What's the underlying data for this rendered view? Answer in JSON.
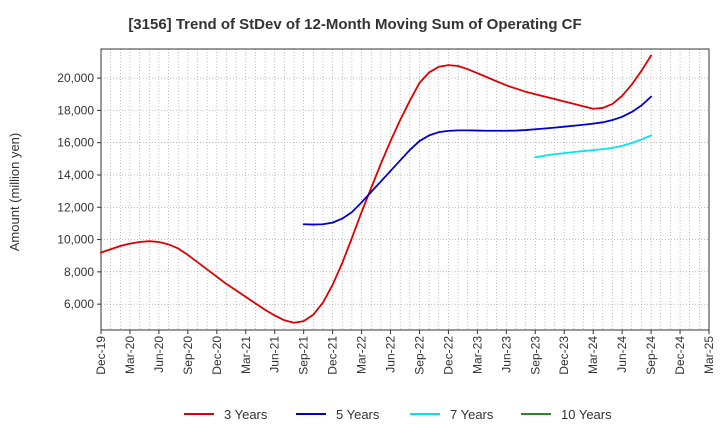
{
  "chart_data": {
    "type": "line",
    "title": "[3156]  Trend of StDev of 12-Month Moving Sum of Operating CF",
    "xlabel": "",
    "ylabel": "Amount (million yen)",
    "ylim": [
      4400,
      21800
    ],
    "yticks": [
      6000,
      8000,
      10000,
      12000,
      14000,
      16000,
      18000,
      20000
    ],
    "ytick_labels": [
      "6,000",
      "8,000",
      "10,000",
      "12,000",
      "14,000",
      "16,000",
      "18,000",
      "20,000"
    ],
    "x_ticks": [
      "Dec-19",
      "Mar-20",
      "Jun-20",
      "Sep-20",
      "Dec-20",
      "Mar-21",
      "Jun-21",
      "Sep-21",
      "Dec-21",
      "Mar-22",
      "Jun-22",
      "Sep-22",
      "Dec-22",
      "Mar-23",
      "Jun-23",
      "Sep-23",
      "Dec-23",
      "Mar-24",
      "Jun-24",
      "Sep-24",
      "Dec-24",
      "Mar-25"
    ],
    "grid": true,
    "legend_position": "bottom",
    "series": [
      {
        "name": "3 Years",
        "color": "#dd0000",
        "points": [
          [
            "Dec-19",
            9200
          ],
          [
            "Jan-20",
            9400
          ],
          [
            "Feb-20",
            9600
          ],
          [
            "Mar-20",
            9750
          ],
          [
            "Apr-20",
            9850
          ],
          [
            "May-20",
            9900
          ],
          [
            "Jun-20",
            9850
          ],
          [
            "Jul-20",
            9700
          ],
          [
            "Aug-20",
            9450
          ],
          [
            "Sep-20",
            9050
          ],
          [
            "Oct-20",
            8600
          ],
          [
            "Nov-20",
            8150
          ],
          [
            "Dec-20",
            7700
          ],
          [
            "Jan-21",
            7250
          ],
          [
            "Feb-21",
            6850
          ],
          [
            "Mar-21",
            6450
          ],
          [
            "Apr-21",
            6050
          ],
          [
            "May-21",
            5650
          ],
          [
            "Jun-21",
            5300
          ],
          [
            "Jul-21",
            5000
          ],
          [
            "Aug-21",
            4850
          ],
          [
            "Sep-21",
            4950
          ],
          [
            "Oct-21",
            5350
          ],
          [
            "Nov-21",
            6100
          ],
          [
            "Dec-21",
            7200
          ],
          [
            "Jan-22",
            8550
          ],
          [
            "Feb-22",
            10100
          ],
          [
            "Mar-22",
            11700
          ],
          [
            "Apr-22",
            13200
          ],
          [
            "May-22",
            14700
          ],
          [
            "Jun-22",
            16100
          ],
          [
            "Jul-22",
            17400
          ],
          [
            "Aug-22",
            18600
          ],
          [
            "Sep-22",
            19700
          ],
          [
            "Oct-22",
            20350
          ],
          [
            "Nov-22",
            20700
          ],
          [
            "Dec-22",
            20800
          ],
          [
            "Jan-23",
            20750
          ],
          [
            "Feb-23",
            20550
          ],
          [
            "Mar-23",
            20300
          ],
          [
            "Apr-23",
            20050
          ],
          [
            "May-23",
            19800
          ],
          [
            "Jun-23",
            19550
          ],
          [
            "Jul-23",
            19350
          ],
          [
            "Aug-23",
            19150
          ],
          [
            "Sep-23",
            19000
          ],
          [
            "Oct-23",
            18850
          ],
          [
            "Nov-23",
            18700
          ],
          [
            "Dec-23",
            18550
          ],
          [
            "Jan-24",
            18400
          ],
          [
            "Feb-24",
            18250
          ],
          [
            "Mar-24",
            18100
          ],
          [
            "Apr-24",
            18150
          ],
          [
            "May-24",
            18400
          ],
          [
            "Jun-24",
            18900
          ],
          [
            "Jul-24",
            19600
          ],
          [
            "Aug-24",
            20450
          ],
          [
            "Sep-24",
            21400
          ]
        ]
      },
      {
        "name": "5 Years",
        "color": "#0000cc",
        "points": [
          [
            "Sep-21",
            10950
          ],
          [
            "Oct-21",
            10930
          ],
          [
            "Nov-21",
            10950
          ],
          [
            "Dec-21",
            11050
          ],
          [
            "Jan-22",
            11300
          ],
          [
            "Feb-22",
            11700
          ],
          [
            "Mar-22",
            12300
          ],
          [
            "Apr-22",
            12950
          ],
          [
            "May-22",
            13600
          ],
          [
            "Jun-22",
            14250
          ],
          [
            "Jul-22",
            14900
          ],
          [
            "Aug-22",
            15550
          ],
          [
            "Sep-22",
            16100
          ],
          [
            "Oct-22",
            16450
          ],
          [
            "Nov-22",
            16650
          ],
          [
            "Dec-22",
            16730
          ],
          [
            "Jan-23",
            16760
          ],
          [
            "Feb-23",
            16760
          ],
          [
            "Mar-23",
            16750
          ],
          [
            "Apr-23",
            16740
          ],
          [
            "May-23",
            16740
          ],
          [
            "Jun-23",
            16740
          ],
          [
            "Jul-23",
            16750
          ],
          [
            "Aug-23",
            16780
          ],
          [
            "Sep-23",
            16830
          ],
          [
            "Oct-23",
            16880
          ],
          [
            "Nov-23",
            16930
          ],
          [
            "Dec-23",
            16990
          ],
          [
            "Jan-24",
            17050
          ],
          [
            "Feb-24",
            17110
          ],
          [
            "Mar-24",
            17180
          ],
          [
            "Apr-24",
            17260
          ],
          [
            "May-24",
            17400
          ],
          [
            "Jun-24",
            17600
          ],
          [
            "Jul-24",
            17900
          ],
          [
            "Aug-24",
            18300
          ],
          [
            "Sep-24",
            18850
          ]
        ]
      },
      {
        "name": "7 Years",
        "color": "#00e5ee",
        "points": [
          [
            "Sep-23",
            15100
          ],
          [
            "Oct-23",
            15200
          ],
          [
            "Nov-23",
            15280
          ],
          [
            "Dec-23",
            15350
          ],
          [
            "Jan-24",
            15420
          ],
          [
            "Feb-24",
            15480
          ],
          [
            "Mar-24",
            15540
          ],
          [
            "Apr-24",
            15600
          ],
          [
            "May-24",
            15680
          ],
          [
            "Jun-24",
            15800
          ],
          [
            "Jul-24",
            15980
          ],
          [
            "Aug-24",
            16200
          ],
          [
            "Sep-24",
            16450
          ]
        ]
      },
      {
        "name": "10 Years",
        "color": "#228b22",
        "points": []
      }
    ]
  }
}
